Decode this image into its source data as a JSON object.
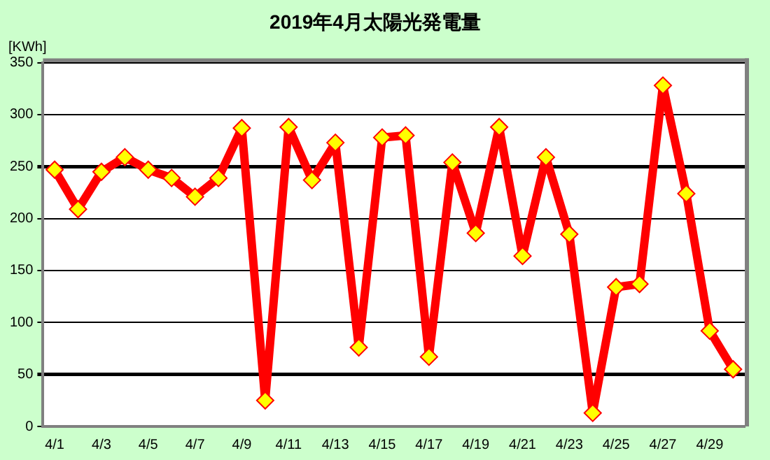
{
  "chart_data": {
    "type": "line",
    "title": "2019年4月太陽光発電量",
    "ylabel": "[KWh]",
    "categories": [
      "4/1",
      null,
      "4/3",
      null,
      "4/5",
      null,
      "4/7",
      null,
      "4/9",
      null,
      "4/11",
      null,
      "4/13",
      null,
      "4/15",
      null,
      "4/17",
      null,
      "4/19",
      null,
      "4/21",
      null,
      "4/23",
      null,
      "4/25",
      null,
      "4/27",
      null,
      "4/29",
      null
    ],
    "series": [
      {
        "color": "#ff0000",
        "values": [
          247,
          209,
          245,
          259,
          247,
          239,
          221,
          239,
          287,
          25,
          288,
          237,
          273,
          76,
          278,
          280,
          67,
          254,
          186,
          288,
          164,
          259,
          185,
          13,
          134,
          137,
          328,
          224,
          92,
          55
        ]
      }
    ],
    "ylim": [
      0,
      350
    ],
    "yticks": [
      0,
      50,
      100,
      150,
      200,
      250,
      300,
      350
    ],
    "grid": "y",
    "legend": false,
    "marker": "diamond",
    "line_style": "solid"
  }
}
